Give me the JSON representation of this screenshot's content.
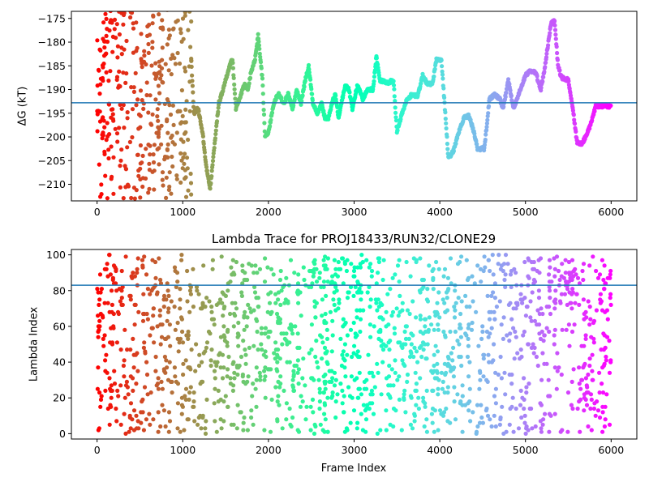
{
  "chart_data": [
    {
      "type": "scatter",
      "title": "",
      "xlabel": "",
      "ylabel": "ΔG (kT)",
      "xlim": [
        -300,
        6300
      ],
      "ylim": [
        -213.5,
        -173.5
      ],
      "xticks": [
        0,
        1000,
        2000,
        3000,
        4000,
        5000,
        6000
      ],
      "yticks": [
        -210,
        -205,
        -200,
        -195,
        -190,
        -185,
        -180,
        -175
      ],
      "xtick_labels": [
        "0",
        "1000",
        "2000",
        "3000",
        "4000",
        "5000",
        "6000"
      ],
      "ytick_labels": [
        "−210",
        "−205",
        "−200",
        "−195",
        "−190",
        "−185",
        "−180",
        "−175"
      ],
      "hline": -192.8,
      "hline_color": "#1f77b4",
      "colormap": "rainbow (red at frame 0 → violet at frame 6000)",
      "grid": false,
      "trace_knots": [
        [
          1100,
          -184
        ],
        [
          1130,
          -195
        ],
        [
          1180,
          -194
        ],
        [
          1230,
          -199
        ],
        [
          1280,
          -207
        ],
        [
          1320,
          -211
        ],
        [
          1380,
          -200
        ],
        [
          1420,
          -193
        ],
        [
          1470,
          -190
        ],
        [
          1530,
          -186
        ],
        [
          1580,
          -183.5
        ],
        [
          1620,
          -194
        ],
        [
          1660,
          -192
        ],
        [
          1720,
          -189
        ],
        [
          1760,
          -190
        ],
        [
          1800,
          -186
        ],
        [
          1840,
          -184
        ],
        [
          1880,
          -178.5
        ],
        [
          1930,
          -188
        ],
        [
          1960,
          -200
        ],
        [
          2000,
          -199
        ],
        [
          2040,
          -195
        ],
        [
          2080,
          -192
        ],
        [
          2120,
          -191
        ],
        [
          2180,
          -193
        ],
        [
          2230,
          -191
        ],
        [
          2280,
          -194
        ],
        [
          2330,
          -190
        ],
        [
          2380,
          -193
        ],
        [
          2430,
          -188
        ],
        [
          2470,
          -185
        ],
        [
          2520,
          -193
        ],
        [
          2570,
          -195
        ],
        [
          2620,
          -193
        ],
        [
          2660,
          -196
        ],
        [
          2700,
          -196
        ],
        [
          2740,
          -193
        ],
        [
          2780,
          -191
        ],
        [
          2820,
          -196
        ],
        [
          2860,
          -192
        ],
        [
          2900,
          -189
        ],
        [
          2940,
          -190
        ],
        [
          2980,
          -194
        ],
        [
          3040,
          -189
        ],
        [
          3100,
          -192
        ],
        [
          3160,
          -190
        ],
        [
          3220,
          -190
        ],
        [
          3260,
          -183
        ],
        [
          3300,
          -188
        ],
        [
          3400,
          -188.5
        ],
        [
          3460,
          -188
        ],
        [
          3500,
          -199
        ],
        [
          3560,
          -195
        ],
        [
          3620,
          -192
        ],
        [
          3680,
          -191
        ],
        [
          3740,
          -191.5
        ],
        [
          3800,
          -187
        ],
        [
          3860,
          -189
        ],
        [
          3920,
          -188.5
        ],
        [
          3960,
          -183.5
        ],
        [
          4020,
          -184
        ],
        [
          4060,
          -194
        ],
        [
          4100,
          -204.5
        ],
        [
          4160,
          -203
        ],
        [
          4220,
          -199
        ],
        [
          4280,
          -196
        ],
        [
          4340,
          -195.5
        ],
        [
          4400,
          -199
        ],
        [
          4440,
          -202.5
        ],
        [
          4520,
          -202.5
        ],
        [
          4580,
          -192
        ],
        [
          4640,
          -191
        ],
        [
          4700,
          -192
        ],
        [
          4740,
          -194
        ],
        [
          4800,
          -188
        ],
        [
          4860,
          -194
        ],
        [
          4940,
          -190
        ],
        [
          5000,
          -187
        ],
        [
          5060,
          -186
        ],
        [
          5120,
          -186.5
        ],
        [
          5180,
          -190
        ],
        [
          5220,
          -186
        ],
        [
          5260,
          -181
        ],
        [
          5300,
          -176
        ],
        [
          5340,
          -175.5
        ],
        [
          5380,
          -185
        ],
        [
          5420,
          -187.5
        ],
        [
          5500,
          -188
        ],
        [
          5560,
          -195
        ],
        [
          5600,
          -201
        ],
        [
          5660,
          -201.5
        ],
        [
          5700,
          -200
        ],
        [
          5760,
          -197.5
        ],
        [
          5820,
          -193.5
        ],
        [
          6000,
          -193.5
        ]
      ]
    },
    {
      "type": "scatter",
      "title": "Lambda Trace for PROJ18433/RUN32/CLONE29",
      "xlabel": "Frame Index",
      "ylabel": "Lambda Index",
      "xlim": [
        -300,
        6300
      ],
      "ylim": [
        -3,
        103
      ],
      "xticks": [
        0,
        1000,
        2000,
        3000,
        4000,
        5000,
        6000
      ],
      "yticks": [
        0,
        20,
        40,
        60,
        80,
        100
      ],
      "xtick_labels": [
        "0",
        "1000",
        "2000",
        "3000",
        "4000",
        "5000",
        "6000"
      ],
      "ytick_labels": [
        "0",
        "20",
        "40",
        "60",
        "80",
        "100"
      ],
      "hline": 83,
      "hline_color": "#1f77b4",
      "colormap": "rainbow (red at frame 0 → violet at frame 6000)",
      "grid": false
    }
  ]
}
